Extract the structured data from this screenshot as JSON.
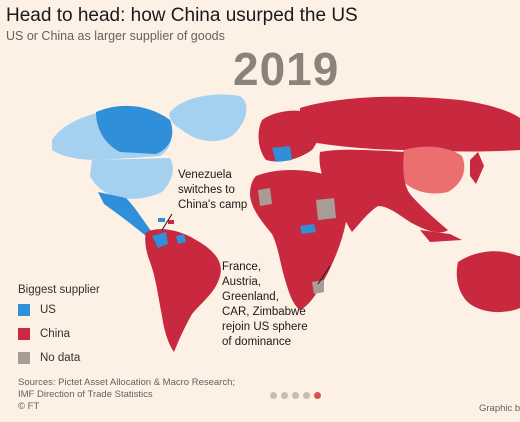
{
  "header": {
    "title": "Head to head: how China usurped the US",
    "subtitle": "US or China as larger supplier of goods",
    "year": "2019"
  },
  "colors": {
    "us": "#2f8fd8",
    "us_light": "#a4d1ef",
    "china": "#c8293f",
    "china_light": "#ec6f6f",
    "no_data": "#a79d95",
    "background": "#fdf1e6"
  },
  "annotations": {
    "venezuela": [
      "Venezuela",
      "switches to",
      "China's camp"
    ],
    "france_group": [
      "France,",
      "Austria,",
      "Greenland,",
      "CAR, Zimbabwe",
      "rejoin US sphere",
      "of dominance"
    ]
  },
  "legend": {
    "title": "Biggest supplier",
    "items": [
      {
        "label": "US",
        "color": "#2f8fd8"
      },
      {
        "label": "China",
        "color": "#c8293f"
      },
      {
        "label": "No data",
        "color": "#a79d95"
      }
    ]
  },
  "sources": {
    "line1": "Sources: Pictet Asset Allocation & Macro Research;",
    "line2": "IMF Direction of Trade Statistics",
    "line3": "© FT"
  },
  "pagination": {
    "count": 5,
    "active": 5
  },
  "credit": "Graphic b"
}
